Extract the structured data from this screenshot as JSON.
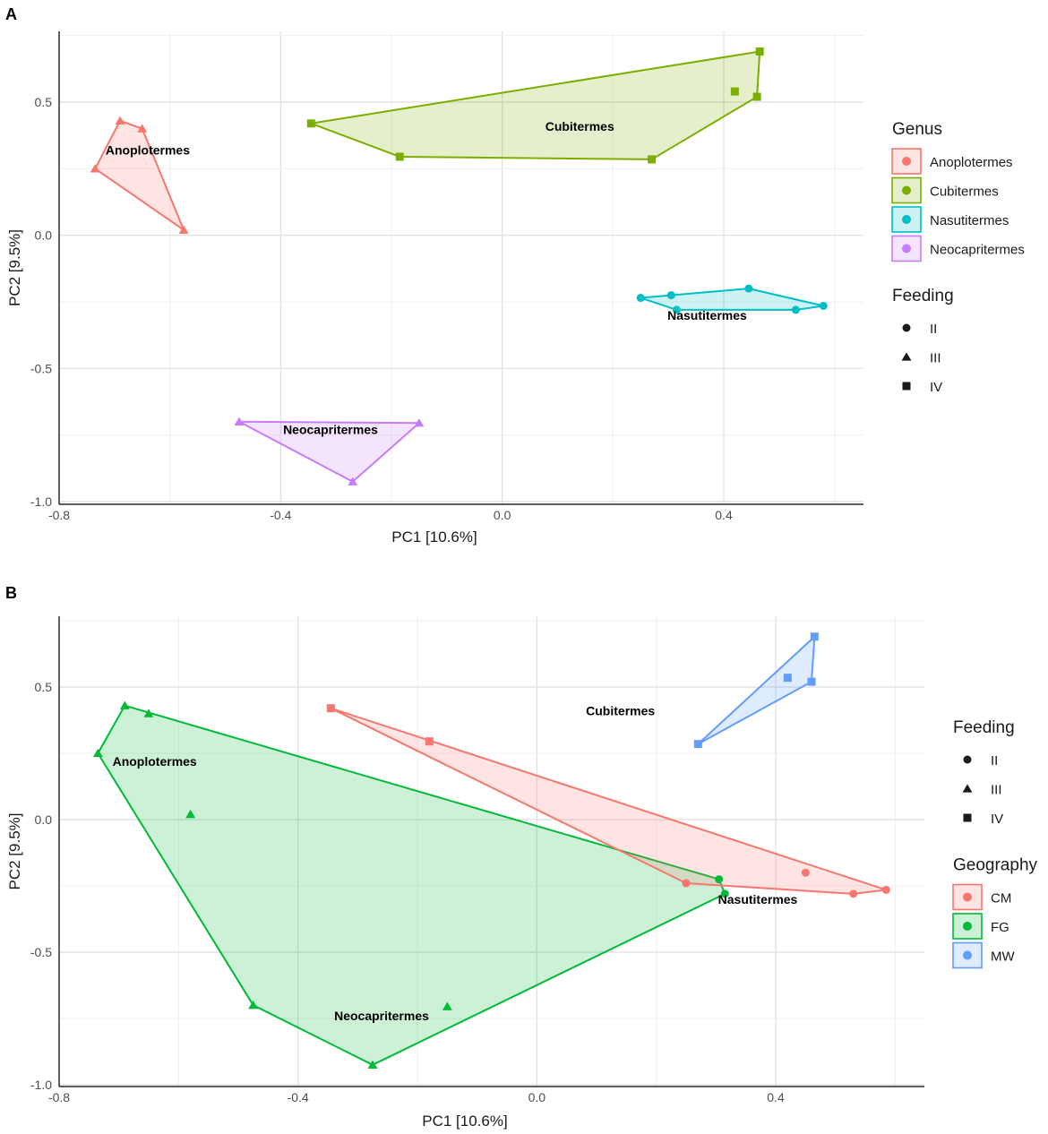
{
  "figure": {
    "colors": {
      "Anoplotermes": "#F8766D",
      "Cubitermes": "#7CAE00",
      "Nasutitermes": "#00BFC4",
      "Neocapritermes": "#C77CFF",
      "CM": "#F8766D",
      "FG": "#00BA38",
      "MW": "#619CFF"
    }
  },
  "chart_data": [
    {
      "panel": "A",
      "type": "scatter",
      "xlabel": "PC1 [10.6%]",
      "ylabel": "PC2 [9.5%]",
      "xlim": [
        -0.8,
        0.62
      ],
      "ylim": [
        -1.0,
        0.75
      ],
      "xticks": [
        -0.8,
        -0.4,
        0.0,
        0.4
      ],
      "xtick_labels": [
        "-0.8",
        "-0.4",
        "0.0",
        "0.4"
      ],
      "yticks": [
        -1.0,
        -0.5,
        0.0,
        0.5
      ],
      "ytick_labels": [
        "-1.0",
        "-0.5",
        "0.0",
        "0.5"
      ],
      "hull_by": "genus",
      "group_labels": [
        {
          "text": "Anoplotermes",
          "x": -0.64,
          "y": 0.32
        },
        {
          "text": "Cubitermes",
          "x": 0.14,
          "y": 0.41
        },
        {
          "text": "Nasutitermes",
          "x": 0.37,
          "y": -0.3
        },
        {
          "text": "Neocapritermes",
          "x": -0.31,
          "y": -0.73
        }
      ],
      "points": [
        {
          "x": -0.69,
          "y": 0.43,
          "genus": "Anoplotermes",
          "feeding": "III"
        },
        {
          "x": -0.65,
          "y": 0.4,
          "genus": "Anoplotermes",
          "feeding": "III"
        },
        {
          "x": -0.735,
          "y": 0.25,
          "genus": "Anoplotermes",
          "feeding": "III"
        },
        {
          "x": -0.575,
          "y": 0.02,
          "genus": "Anoplotermes",
          "feeding": "III"
        },
        {
          "x": -0.345,
          "y": 0.42,
          "genus": "Cubitermes",
          "feeding": "IV"
        },
        {
          "x": -0.185,
          "y": 0.295,
          "genus": "Cubitermes",
          "feeding": "IV"
        },
        {
          "x": 0.27,
          "y": 0.285,
          "genus": "Cubitermes",
          "feeding": "IV"
        },
        {
          "x": 0.42,
          "y": 0.54,
          "genus": "Cubitermes",
          "feeding": "IV"
        },
        {
          "x": 0.46,
          "y": 0.52,
          "genus": "Cubitermes",
          "feeding": "IV"
        },
        {
          "x": 0.465,
          "y": 0.69,
          "genus": "Cubitermes",
          "feeding": "IV"
        },
        {
          "x": 0.25,
          "y": -0.235,
          "genus": "Nasutitermes",
          "feeding": "II"
        },
        {
          "x": 0.305,
          "y": -0.225,
          "genus": "Nasutitermes",
          "feeding": "II"
        },
        {
          "x": 0.315,
          "y": -0.28,
          "genus": "Nasutitermes",
          "feeding": "II"
        },
        {
          "x": 0.445,
          "y": -0.2,
          "genus": "Nasutitermes",
          "feeding": "II"
        },
        {
          "x": 0.53,
          "y": -0.28,
          "genus": "Nasutitermes",
          "feeding": "II"
        },
        {
          "x": 0.58,
          "y": -0.265,
          "genus": "Nasutitermes",
          "feeding": "II"
        },
        {
          "x": -0.475,
          "y": -0.7,
          "genus": "Neocapritermes",
          "feeding": "III"
        },
        {
          "x": -0.15,
          "y": -0.705,
          "genus": "Neocapritermes",
          "feeding": "III"
        },
        {
          "x": -0.27,
          "y": -0.925,
          "genus": "Neocapritermes",
          "feeding": "III"
        }
      ],
      "legends": [
        {
          "title": "Genus",
          "kind": "fill",
          "entries": [
            "Anoplotermes",
            "Cubitermes",
            "Nasutitermes",
            "Neocapritermes"
          ]
        },
        {
          "title": "Feeding",
          "kind": "shape",
          "entries": [
            "II",
            "III",
            "IV"
          ]
        }
      ]
    },
    {
      "panel": "B",
      "type": "scatter",
      "xlabel": "PC1 [10.6%]",
      "ylabel": "PC2 [9.5%]",
      "xlim": [
        -0.8,
        0.66
      ],
      "ylim": [
        -1.0,
        0.75
      ],
      "xticks": [
        -0.8,
        -0.4,
        0.0,
        0.4
      ],
      "xtick_labels": [
        "-0.8",
        "-0.4",
        "0.0",
        "0.4"
      ],
      "yticks": [
        -1.0,
        -0.5,
        0.0,
        0.5
      ],
      "ytick_labels": [
        "-1.0",
        "-0.5",
        "0.0",
        "0.5"
      ],
      "hull_by": "geography",
      "group_labels": [
        {
          "text": "Cubitermes",
          "x": 0.14,
          "y": 0.41
        },
        {
          "text": "Anoplotermes",
          "x": -0.64,
          "y": 0.22
        },
        {
          "text": "Nasutitermes",
          "x": 0.37,
          "y": -0.3
        },
        {
          "text": "Neocapritermes",
          "x": -0.26,
          "y": -0.74
        }
      ],
      "points": [
        {
          "x": -0.69,
          "y": 0.43,
          "geography": "FG",
          "feeding": "III"
        },
        {
          "x": -0.65,
          "y": 0.4,
          "geography": "FG",
          "feeding": "III"
        },
        {
          "x": -0.735,
          "y": 0.25,
          "geography": "FG",
          "feeding": "III"
        },
        {
          "x": -0.58,
          "y": 0.02,
          "geography": "FG",
          "feeding": "III"
        },
        {
          "x": -0.475,
          "y": -0.7,
          "geography": "FG",
          "feeding": "III"
        },
        {
          "x": -0.15,
          "y": -0.705,
          "geography": "FG",
          "feeding": "III"
        },
        {
          "x": -0.275,
          "y": -0.925,
          "geography": "FG",
          "feeding": "III"
        },
        {
          "x": 0.305,
          "y": -0.225,
          "geography": "FG",
          "feeding": "II"
        },
        {
          "x": 0.315,
          "y": -0.28,
          "geography": "FG",
          "feeding": "II"
        },
        {
          "x": -0.345,
          "y": 0.42,
          "geography": "CM",
          "feeding": "IV"
        },
        {
          "x": -0.18,
          "y": 0.295,
          "geography": "CM",
          "feeding": "IV"
        },
        {
          "x": 0.25,
          "y": -0.24,
          "geography": "CM",
          "feeding": "II"
        },
        {
          "x": 0.45,
          "y": -0.2,
          "geography": "CM",
          "feeding": "II"
        },
        {
          "x": 0.53,
          "y": -0.28,
          "geography": "CM",
          "feeding": "II"
        },
        {
          "x": 0.585,
          "y": -0.265,
          "geography": "CM",
          "feeding": "II"
        },
        {
          "x": 0.27,
          "y": 0.285,
          "geography": "MW",
          "feeding": "IV"
        },
        {
          "x": 0.42,
          "y": 0.535,
          "geography": "MW",
          "feeding": "IV"
        },
        {
          "x": 0.46,
          "y": 0.52,
          "geography": "MW",
          "feeding": "IV"
        },
        {
          "x": 0.465,
          "y": 0.69,
          "geography": "MW",
          "feeding": "IV"
        }
      ],
      "legends": [
        {
          "title": "Feeding",
          "kind": "shape",
          "entries": [
            "II",
            "III",
            "IV"
          ]
        },
        {
          "title": "Geography",
          "kind": "fill",
          "entries": [
            "CM",
            "FG",
            "MW"
          ]
        }
      ]
    }
  ]
}
